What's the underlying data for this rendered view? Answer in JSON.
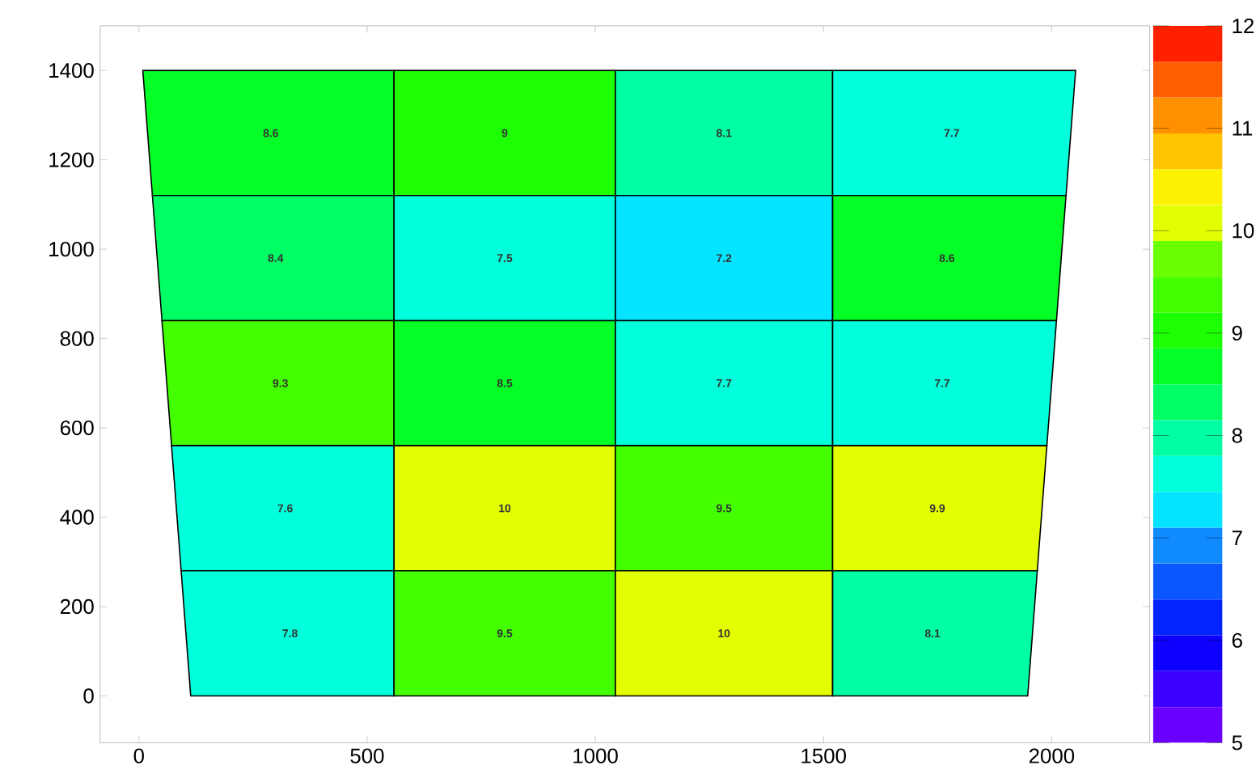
{
  "chart_data": {
    "type": "heatmap",
    "x": [
      310,
      808,
      1280,
      1760
    ],
    "y": [
      1260,
      980,
      700,
      420,
      140
    ],
    "cells": [
      [
        8.6,
        9,
        8.1,
        7.7
      ],
      [
        8.4,
        7.5,
        7.2,
        8.6
      ],
      [
        9.3,
        8.5,
        7.7,
        7.7
      ],
      [
        7.6,
        10,
        9.5,
        9.9
      ],
      [
        7.8,
        9.5,
        10,
        8.1
      ]
    ],
    "data_labels": true,
    "xlim": [
      -85,
      2215
    ],
    "ylim": [
      -105,
      1500
    ],
    "xticks": [
      0,
      500,
      1000,
      1500,
      2000
    ],
    "yticks": [
      0,
      200,
      400,
      600,
      800,
      1000,
      1200,
      1400
    ],
    "clim": [
      5,
      12
    ],
    "cticks": [
      5,
      6,
      7,
      8,
      9,
      10,
      11,
      12
    ]
  }
}
